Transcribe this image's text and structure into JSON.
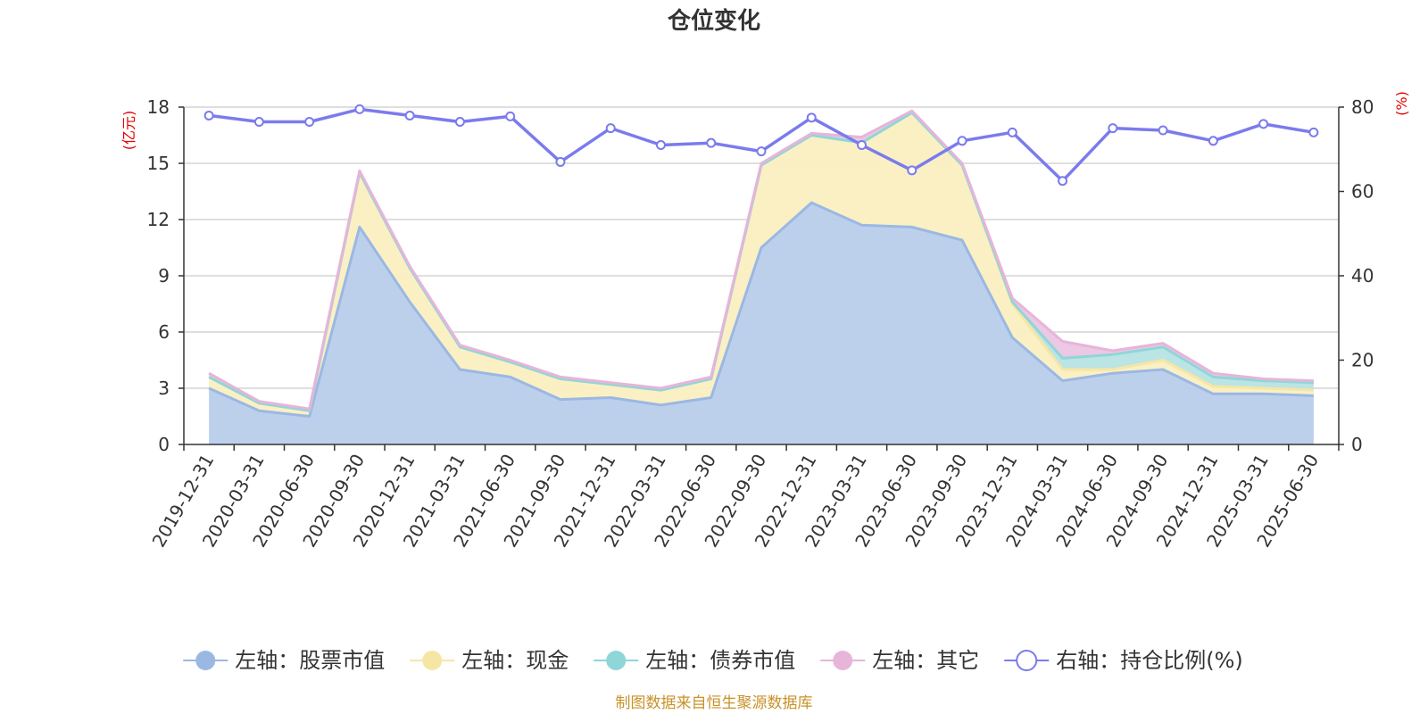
{
  "chart_data": {
    "type": "area",
    "title": "仓位变化",
    "source": "制图数据来自恒生聚源数据库",
    "left_axis": {
      "unit": "(亿元)",
      "min": 0,
      "max": 18,
      "ticks": [
        0,
        3,
        6,
        9,
        12,
        15,
        18
      ]
    },
    "right_axis": {
      "unit": "(%)",
      "min": 0,
      "max": 80,
      "ticks": [
        0,
        20,
        40,
        60,
        80
      ]
    },
    "grid": true,
    "legend_position": "bottom",
    "categories": [
      "2019-12-31",
      "2020-03-31",
      "2020-06-30",
      "2020-09-30",
      "2020-12-31",
      "2021-03-31",
      "2021-06-30",
      "2021-09-30",
      "2021-12-31",
      "2022-03-31",
      "2022-06-30",
      "2022-09-30",
      "2022-12-31",
      "2023-03-31",
      "2023-06-30",
      "2023-09-30",
      "2023-12-31",
      "2024-03-31",
      "2024-06-30",
      "2024-09-30",
      "2024-12-31",
      "2025-03-31",
      "2025-06-30"
    ],
    "series": [
      {
        "name": "左轴：股票市值",
        "axis": "left",
        "color": "#9bb8e3",
        "fill": "#b8cdeb",
        "values": [
          3.0,
          1.8,
          1.5,
          11.6,
          7.6,
          4.0,
          3.6,
          2.4,
          2.5,
          2.1,
          2.5,
          10.5,
          12.9,
          11.7,
          11.6,
          10.9,
          5.7,
          3.4,
          3.8,
          4.0,
          2.7,
          2.7,
          2.6
        ]
      },
      {
        "name": "左轴：现金",
        "axis": "left",
        "color": "#f6e6a4",
        "fill": "#faefc1",
        "values": [
          0.6,
          0.4,
          0.3,
          2.9,
          1.8,
          1.2,
          0.8,
          1.1,
          0.7,
          0.8,
          1.0,
          4.4,
          3.6,
          4.4,
          6.1,
          4.0,
          1.8,
          0.6,
          0.2,
          0.5,
          0.4,
          0.3,
          0.3
        ]
      },
      {
        "name": "左轴：债券市值",
        "axis": "left",
        "color": "#8fd6d8",
        "fill": "#b7e3e4",
        "values": [
          0,
          0,
          0,
          0,
          0,
          0,
          0,
          0,
          0,
          0,
          0,
          0,
          0,
          0,
          0,
          0,
          0.1,
          0.6,
          0.8,
          0.7,
          0.5,
          0.4,
          0.4
        ]
      },
      {
        "name": "左轴：其它",
        "axis": "left",
        "color": "#e6b5d9",
        "fill": "#eac5e1",
        "values": [
          0.2,
          0.1,
          0.1,
          0.1,
          0.1,
          0.1,
          0.1,
          0.1,
          0.1,
          0.1,
          0.1,
          0.1,
          0.1,
          0.3,
          0.1,
          0.1,
          0.2,
          0.9,
          0.2,
          0.2,
          0.2,
          0.1,
          0.1
        ]
      },
      {
        "name": "右轴：持仓比例(%)",
        "axis": "right",
        "type": "line",
        "color": "#7b7bed",
        "values": [
          78.0,
          76.5,
          76.5,
          79.5,
          78.0,
          76.5,
          77.8,
          67.0,
          75.0,
          71.0,
          71.5,
          69.5,
          77.5,
          71.0,
          65.0,
          72.0,
          74.0,
          62.5,
          75.0,
          74.5,
          72.0,
          76.0,
          74.0
        ]
      }
    ]
  }
}
